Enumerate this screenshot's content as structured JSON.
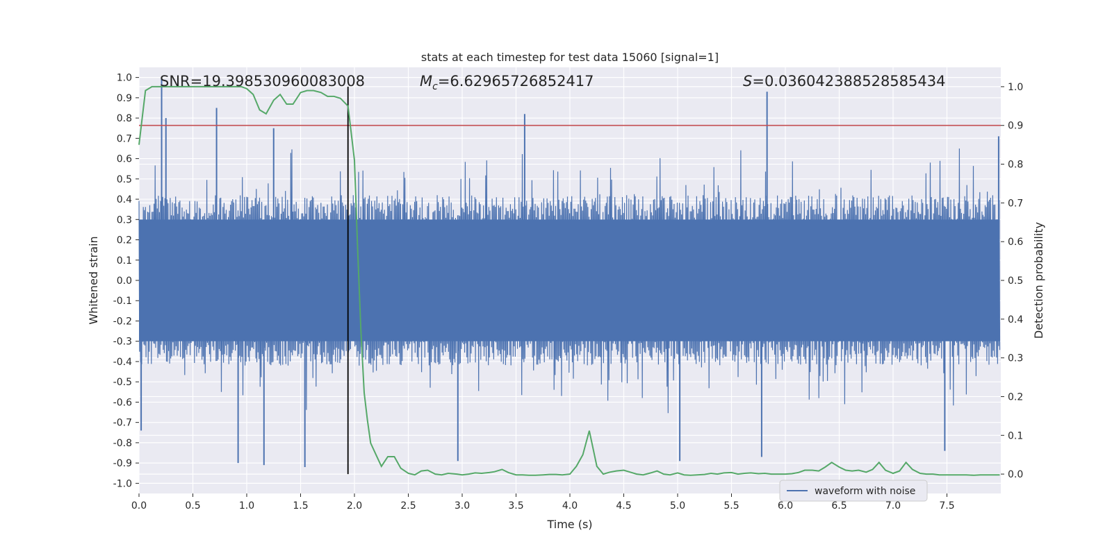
{
  "chart_data": {
    "type": "line",
    "title": "stats at each timestep for test data 15060 [signal=1]",
    "xlabel": "Time (s)",
    "ylabel_left": "Whitened strain",
    "ylabel_right": "Detection probability",
    "xlim": [
      0.0,
      8.0
    ],
    "ylim_left": [
      -1.05,
      1.05
    ],
    "ylim_right": [
      -0.05,
      1.05
    ],
    "x_ticks": [
      "0.0",
      "0.5",
      "1.0",
      "1.5",
      "2.0",
      "2.5",
      "3.0",
      "3.5",
      "4.0",
      "4.5",
      "5.0",
      "5.5",
      "6.0",
      "6.5",
      "7.0",
      "7.5"
    ],
    "x_tick_values": [
      0.0,
      0.5,
      1.0,
      1.5,
      2.0,
      2.5,
      3.0,
      3.5,
      4.0,
      4.5,
      5.0,
      5.5,
      6.0,
      6.5,
      7.0,
      7.5
    ],
    "y_left_ticks": [
      "1.0",
      "0.9",
      "0.8",
      "0.7",
      "0.6",
      "0.5",
      "0.4",
      "0.3",
      "0.2",
      "0.1",
      "0.0",
      "-0.1",
      "-0.2",
      "-0.3",
      "-0.4",
      "-0.5",
      "-0.6",
      "-0.7",
      "-0.8",
      "-0.9",
      "-1.0"
    ],
    "y_left_tick_values": [
      1.0,
      0.9,
      0.8,
      0.7,
      0.6,
      0.5,
      0.4,
      0.3,
      0.2,
      0.1,
      0.0,
      -0.1,
      -0.2,
      -0.3,
      -0.4,
      -0.5,
      -0.6,
      -0.7,
      -0.8,
      -0.9,
      -1.0
    ],
    "y_right_ticks": [
      "1.0",
      "0.9",
      "0.8",
      "0.7",
      "0.6",
      "0.5",
      "0.4",
      "0.3",
      "0.2",
      "0.1",
      "0.0"
    ],
    "y_right_tick_values": [
      1.0,
      0.9,
      0.8,
      0.7,
      0.6,
      0.5,
      0.4,
      0.3,
      0.2,
      0.1,
      0.0
    ],
    "annotations": {
      "snr": "SNR=19.398530960083008",
      "mc_symbol": "M",
      "mc_subscript": "c",
      "mc_value": "=6.62965726852417",
      "s_symbol": "S",
      "s_value": "=0.036042388528585434"
    },
    "threshold": {
      "axis": "right",
      "value": 0.9,
      "color": "#c44e52"
    },
    "event_time": {
      "x": 1.94,
      "color": "#000000"
    },
    "series": [
      {
        "name": "waveform with noise",
        "axis": "left",
        "color": "#4c72b0",
        "description": "dense whitened noise strain, typical envelope about ±0.4 with spikes",
        "peaks": [
          {
            "x": 0.21,
            "y": 1.0
          },
          {
            "x": 0.72,
            "y": 0.85
          },
          {
            "x": 3.58,
            "y": 0.82
          },
          {
            "x": 5.83,
            "y": 0.93
          },
          {
            "x": 7.98,
            "y": 0.71
          },
          {
            "x": 0.25,
            "y": 0.8
          },
          {
            "x": 1.25,
            "y": 0.75
          }
        ],
        "troughs": [
          {
            "x": 0.92,
            "y": -0.9
          },
          {
            "x": 1.16,
            "y": -0.91
          },
          {
            "x": 1.54,
            "y": -0.92
          },
          {
            "x": 2.96,
            "y": -0.89
          },
          {
            "x": 5.02,
            "y": -0.89
          },
          {
            "x": 5.78,
            "y": -0.87
          },
          {
            "x": 7.48,
            "y": -0.84
          },
          {
            "x": 0.02,
            "y": -0.74
          }
        ]
      },
      {
        "name": "detection probability",
        "axis": "right",
        "color": "#55a868",
        "x": [
          0.0,
          0.06,
          0.12,
          0.18,
          0.25,
          0.4,
          0.6,
          0.8,
          0.95,
          1.0,
          1.06,
          1.12,
          1.18,
          1.25,
          1.31,
          1.37,
          1.43,
          1.5,
          1.56,
          1.62,
          1.69,
          1.75,
          1.81,
          1.87,
          1.94,
          1.97,
          2.0,
          2.03,
          2.06,
          2.09,
          2.12,
          2.15,
          2.2,
          2.25,
          2.31,
          2.37,
          2.43,
          2.5,
          2.56,
          2.62,
          2.68,
          2.75,
          2.81,
          2.87,
          2.95,
          3.0,
          3.06,
          3.12,
          3.18,
          3.25,
          3.3,
          3.37,
          3.43,
          3.5,
          3.56,
          3.62,
          3.68,
          3.75,
          3.81,
          3.87,
          3.93,
          4.0,
          4.06,
          4.12,
          4.18,
          4.25,
          4.31,
          4.37,
          4.43,
          4.5,
          4.56,
          4.62,
          4.68,
          4.75,
          4.81,
          4.87,
          4.93,
          5.0,
          5.06,
          5.12,
          5.18,
          5.25,
          5.31,
          5.37,
          5.43,
          5.5,
          5.56,
          5.62,
          5.68,
          5.75,
          5.81,
          5.87,
          5.93,
          6.0,
          6.06,
          6.12,
          6.18,
          6.25,
          6.31,
          6.37,
          6.43,
          6.5,
          6.56,
          6.62,
          6.68,
          6.75,
          6.81,
          6.87,
          6.93,
          7.0,
          7.06,
          7.12,
          7.18,
          7.25,
          7.31,
          7.37,
          7.43,
          7.5,
          7.56,
          7.62,
          7.68,
          7.75,
          7.81,
          7.87,
          7.93,
          7.99
        ],
        "values": [
          0.85,
          0.99,
          1.0,
          1.0,
          1.0,
          1.0,
          1.0,
          1.0,
          1.0,
          0.995,
          0.98,
          0.94,
          0.93,
          0.965,
          0.98,
          0.955,
          0.955,
          0.985,
          0.99,
          0.99,
          0.985,
          0.975,
          0.975,
          0.97,
          0.95,
          0.88,
          0.81,
          0.58,
          0.37,
          0.21,
          0.14,
          0.08,
          0.05,
          0.02,
          0.045,
          0.045,
          0.015,
          0.002,
          -0.002,
          0.008,
          0.01,
          0.0,
          -0.002,
          0.002,
          0.0,
          -0.002,
          0.0,
          0.003,
          0.002,
          0.004,
          0.006,
          0.012,
          0.004,
          -0.002,
          -0.002,
          -0.003,
          -0.003,
          -0.002,
          -0.001,
          -0.001,
          -0.002,
          0.0,
          0.02,
          0.05,
          0.112,
          0.02,
          0.0,
          0.005,
          0.008,
          0.01,
          0.005,
          0.0,
          -0.002,
          0.003,
          0.008,
          0.0,
          -0.002,
          0.003,
          -0.002,
          -0.003,
          -0.002,
          -0.001,
          0.002,
          0.0,
          0.003,
          0.004,
          0.0,
          0.002,
          0.003,
          0.001,
          0.002,
          0.0,
          0.0,
          0.0,
          0.001,
          0.004,
          0.01,
          0.01,
          0.008,
          0.018,
          0.03,
          0.018,
          0.01,
          0.008,
          0.01,
          0.005,
          0.012,
          0.03,
          0.01,
          0.002,
          0.008,
          0.03,
          0.012,
          0.002,
          0.0,
          0.0,
          -0.002,
          -0.002,
          -0.002,
          -0.002,
          -0.002,
          -0.003,
          -0.002,
          -0.002,
          -0.002,
          -0.002
        ]
      }
    ],
    "legend": {
      "label": "waveform with noise",
      "placement": "lower-right"
    },
    "grid": true
  },
  "colors": {
    "background": "#eaeaf2",
    "grid": "#ffffff",
    "waveform": "#4c72b0",
    "probability": "#55a868",
    "threshold": "#c44e52",
    "event_line": "#000000"
  }
}
